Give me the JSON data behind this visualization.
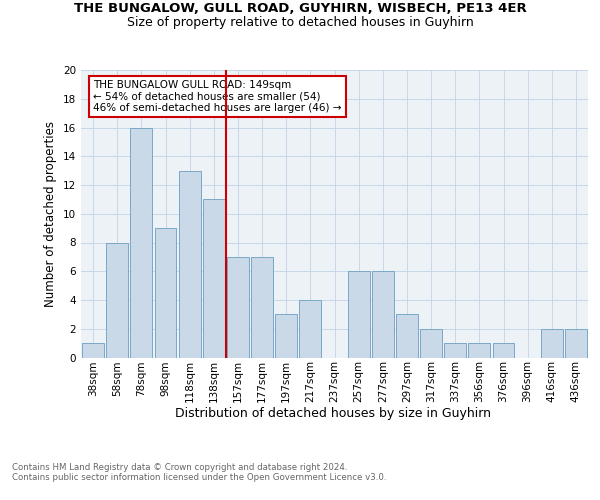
{
  "title": "THE BUNGALOW, GULL ROAD, GUYHIRN, WISBECH, PE13 4ER",
  "subtitle": "Size of property relative to detached houses in Guyhirn",
  "xlabel": "Distribution of detached houses by size in Guyhirn",
  "ylabel": "Number of detached properties",
  "categories": [
    "38sqm",
    "58sqm",
    "78sqm",
    "98sqm",
    "118sqm",
    "138sqm",
    "157sqm",
    "177sqm",
    "197sqm",
    "217sqm",
    "237sqm",
    "257sqm",
    "277sqm",
    "297sqm",
    "317sqm",
    "337sqm",
    "356sqm",
    "376sqm",
    "396sqm",
    "416sqm",
    "436sqm"
  ],
  "values": [
    1,
    8,
    16,
    9,
    13,
    11,
    7,
    7,
    3,
    4,
    0,
    6,
    6,
    3,
    2,
    1,
    1,
    1,
    0,
    2,
    2
  ],
  "bar_color": "#c9d9e8",
  "bar_edge_color": "#7aa8c8",
  "grid_color": "#c8d8e8",
  "vline_x": 5.5,
  "vline_color": "#cc0000",
  "annotation_text": "THE BUNGALOW GULL ROAD: 149sqm\n← 54% of detached houses are smaller (54)\n46% of semi-detached houses are larger (46) →",
  "annotation_box_color": "#ffffff",
  "annotation_box_edge": "#cc0000",
  "ylim": [
    0,
    20
  ],
  "yticks": [
    0,
    2,
    4,
    6,
    8,
    10,
    12,
    14,
    16,
    18,
    20
  ],
  "footer": "Contains HM Land Registry data © Crown copyright and database right 2024.\nContains public sector information licensed under the Open Government Licence v3.0.",
  "bg_color": "#edf2f7",
  "title_fontsize": 9.5,
  "subtitle_fontsize": 9,
  "ylabel_fontsize": 8.5,
  "xlabel_fontsize": 9,
  "tick_fontsize": 7.5,
  "footer_fontsize": 6.2,
  "annotation_fontsize": 7.5
}
